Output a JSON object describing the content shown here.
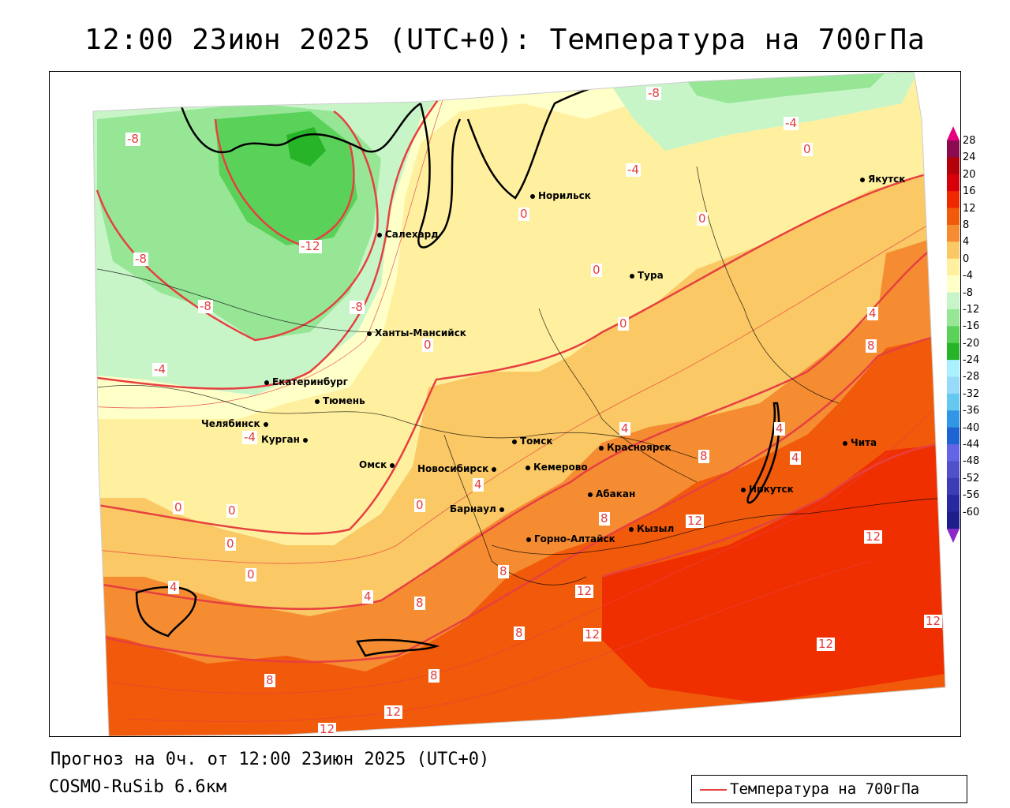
{
  "title": "12:00 23июн 2025 (UTC+0): Температура на 700гПа",
  "forecast_line": "Прогноз на 0ч. от 12:00 23июн 2025 (UTC+0)",
  "model_line": "COSMO-RuSib 6.6км",
  "legend_label": "Температура на 700гПа",
  "colorbar": {
    "labels": [
      "28",
      "24",
      "20",
      "16",
      "12",
      "8",
      "4",
      "0",
      "-4",
      "-8",
      "-12",
      "-16",
      "-20",
      "-24",
      "-28",
      "-32",
      "-36",
      "-40",
      "-44",
      "-48",
      "-52",
      "-56",
      "-60"
    ],
    "colors": [
      "#8b0a50",
      "#b4000a",
      "#d7000a",
      "#f02800",
      "#f05a0a",
      "#f58c32",
      "#fac864",
      "#fff0a0",
      "#ffffc8",
      "#c8f5c8",
      "#96e696",
      "#5ad25a",
      "#28b428",
      "#aaf0ff",
      "#96dcfa",
      "#64c8f0",
      "#3296e6",
      "#1e64d2",
      "#6464e6",
      "#5050c8",
      "#3c3cb4",
      "#2828a0",
      "#1e1e8c"
    ],
    "top_arrow_color": "#e6007e",
    "bottom_arrow_color": "#8c28c8"
  },
  "cities": [
    {
      "name": "Норильск"
    },
    {
      "name": "Якутск"
    },
    {
      "name": "Салехард"
    },
    {
      "name": "Тура"
    },
    {
      "name": "Ханты-Мансийск"
    },
    {
      "name": "Екатеринбург"
    },
    {
      "name": "Тюмень"
    },
    {
      "name": "Челябинск"
    },
    {
      "name": "Курган"
    },
    {
      "name": "Томск"
    },
    {
      "name": "Омск"
    },
    {
      "name": "Новосибирск"
    },
    {
      "name": "Кемерово"
    },
    {
      "name": "Красноярск"
    },
    {
      "name": "Чита"
    },
    {
      "name": "Иркутск"
    },
    {
      "name": "Абакан"
    },
    {
      "name": "Барнаул"
    },
    {
      "name": "Кызыл"
    },
    {
      "name": "Горно-Алтайск"
    }
  ],
  "contour_labels": [
    "-8",
    "-4",
    "0",
    "-4",
    "-8",
    "-12",
    "0",
    "0",
    "-8",
    "-8",
    "-8",
    "0",
    "4",
    "4",
    "-4",
    "0",
    "0",
    "-4",
    "4",
    "8",
    "8",
    "4",
    "0",
    "0",
    "0",
    "0",
    "4",
    "4",
    "8",
    "8",
    "8",
    "8",
    "12",
    "12",
    "4",
    "8",
    "12",
    "12",
    "12",
    "12",
    "8",
    "12",
    "8",
    "12"
  ]
}
